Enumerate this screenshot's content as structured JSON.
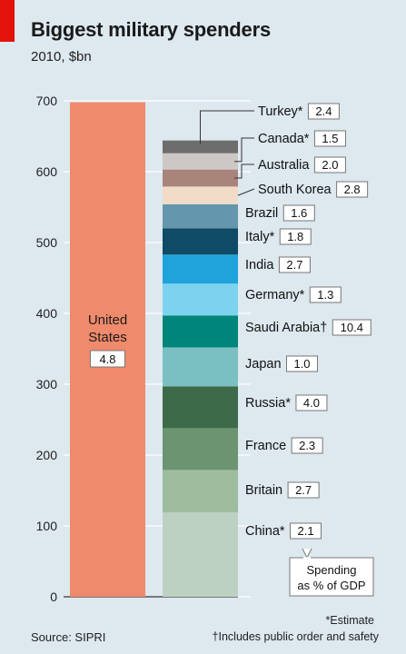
{
  "header": {
    "title": "Biggest military spenders",
    "subtitle": "2010, $bn"
  },
  "footer": {
    "source": "Source: SIPRI",
    "note_estimate": "*Estimate",
    "note_public": "†Includes public order and safety"
  },
  "legend_box": {
    "line1": "Spending",
    "line2": "as % of GDP"
  },
  "chart_data": {
    "type": "bar",
    "title": "Biggest military spenders",
    "subtitle": "2010, $bn",
    "ylim": [
      0,
      700
    ],
    "yticks": [
      0,
      100,
      200,
      300,
      400,
      500,
      600,
      700
    ],
    "united_states": {
      "name_line1": "United",
      "name_line2": "States",
      "value": 698,
      "gdp_share": "4.8",
      "color": "#f08a6c"
    },
    "stack": [
      {
        "name": "China*",
        "value": 119,
        "gdp_share": "2.1",
        "color": "#bdd1c3"
      },
      {
        "name": "Britain",
        "value": 60,
        "gdp_share": "2.7",
        "color": "#9ebc9e"
      },
      {
        "name": "France",
        "value": 59,
        "gdp_share": "2.3",
        "color": "#6b9471"
      },
      {
        "name": "Russia*",
        "value": 59,
        "gdp_share": "4.0",
        "color": "#3d6a49"
      },
      {
        "name": "Japan",
        "value": 55,
        "gdp_share": "1.0",
        "color": "#7abfc2"
      },
      {
        "name": "Saudi Arabia†",
        "value": 45,
        "gdp_share": "10.4",
        "color": "#00857a"
      },
      {
        "name": "Germany*",
        "value": 45,
        "gdp_share": "1.3",
        "color": "#7dd2f0"
      },
      {
        "name": "India",
        "value": 41,
        "gdp_share": "2.7",
        "color": "#1fa3da"
      },
      {
        "name": "Italy*",
        "value": 37,
        "gdp_share": "1.8",
        "color": "#0f4a66"
      },
      {
        "name": "Brazil",
        "value": 34,
        "gdp_share": "1.6",
        "color": "#6496ad"
      },
      {
        "name": "South Korea",
        "value": 25,
        "gdp_share": "2.8",
        "color": "#f1dcc8"
      },
      {
        "name": "Australia",
        "value": 24,
        "gdp_share": "2.0",
        "color": "#a9847a"
      },
      {
        "name": "Canada*",
        "value": 23,
        "gdp_share": "1.5",
        "color": "#cdc7c5"
      },
      {
        "name": "Turkey*",
        "value": 18,
        "gdp_share": "2.4",
        "color": "#6d6d6d"
      }
    ]
  }
}
